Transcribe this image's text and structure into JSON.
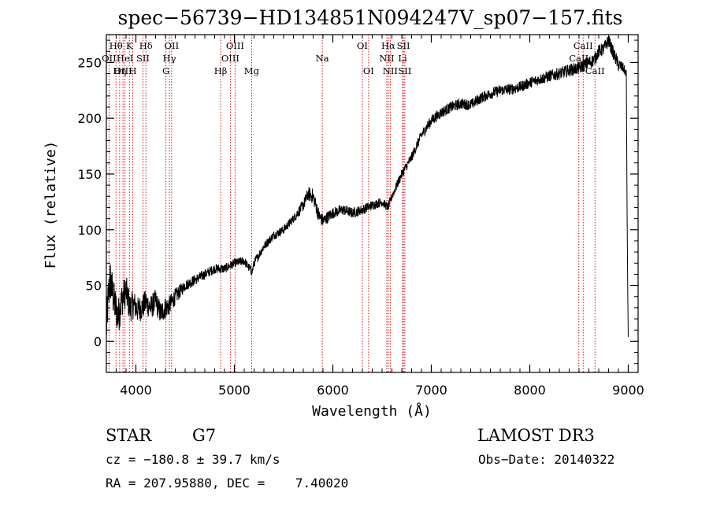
{
  "chart_data": {
    "type": "line",
    "title": "spec−56739−HD134851N094247V_sp07−157.fits",
    "xlabel": "Wavelength (Å)",
    "ylabel": "Flux (relative)",
    "xlim": [
      3700,
      9100
    ],
    "ylim": [
      -28,
      275
    ],
    "x_ticks": [
      4000,
      5000,
      6000,
      7000,
      8000,
      9000
    ],
    "y_ticks": [
      0,
      50,
      100,
      150,
      200,
      250
    ],
    "series": [
      {
        "name": "spectrum",
        "anchors": [
          [
            3700,
            10
          ],
          [
            3720,
            40
          ],
          [
            3740,
            55
          ],
          [
            3780,
            35
          ],
          [
            3820,
            22
          ],
          [
            3860,
            38
          ],
          [
            3900,
            45
          ],
          [
            3940,
            30
          ],
          [
            3980,
            33
          ],
          [
            4020,
            28
          ],
          [
            4060,
            30
          ],
          [
            4100,
            35
          ],
          [
            4150,
            30
          ],
          [
            4200,
            36
          ],
          [
            4250,
            25
          ],
          [
            4300,
            30
          ],
          [
            4340,
            32
          ],
          [
            4400,
            40
          ],
          [
            4500,
            50
          ],
          [
            4600,
            55
          ],
          [
            4700,
            60
          ],
          [
            4800,
            65
          ],
          [
            4900,
            65
          ],
          [
            5000,
            70
          ],
          [
            5100,
            72
          ],
          [
            5180,
            62
          ],
          [
            5200,
            70
          ],
          [
            5300,
            85
          ],
          [
            5400,
            95
          ],
          [
            5500,
            100
          ],
          [
            5600,
            110
          ],
          [
            5700,
            122
          ],
          [
            5750,
            132
          ],
          [
            5800,
            130
          ],
          [
            5860,
            112
          ],
          [
            5900,
            108
          ],
          [
            6000,
            115
          ],
          [
            6100,
            118
          ],
          [
            6200,
            115
          ],
          [
            6300,
            118
          ],
          [
            6400,
            122
          ],
          [
            6500,
            125
          ],
          [
            6560,
            120
          ],
          [
            6600,
            130
          ],
          [
            6700,
            150
          ],
          [
            6800,
            165
          ],
          [
            6900,
            185
          ],
          [
            7000,
            198
          ],
          [
            7100,
            205
          ],
          [
            7200,
            210
          ],
          [
            7300,
            213
          ],
          [
            7400,
            212
          ],
          [
            7500,
            218
          ],
          [
            7600,
            222
          ],
          [
            7700,
            225
          ],
          [
            7800,
            226
          ],
          [
            7900,
            228
          ],
          [
            8000,
            232
          ],
          [
            8100,
            235
          ],
          [
            8200,
            238
          ],
          [
            8300,
            240
          ],
          [
            8400,
            243
          ],
          [
            8500,
            245
          ],
          [
            8600,
            250
          ],
          [
            8650,
            252
          ],
          [
            8700,
            260
          ],
          [
            8750,
            262
          ],
          [
            8800,
            270
          ],
          [
            8820,
            265
          ],
          [
            8850,
            258
          ],
          [
            8900,
            248
          ],
          [
            8950,
            245
          ],
          [
            8980,
            240
          ],
          [
            8990,
            90
          ],
          [
            9000,
            0
          ]
        ],
        "noise": [
          [
            3700,
            20
          ],
          [
            4000,
            12
          ],
          [
            4300,
            10
          ],
          [
            4500,
            5
          ],
          [
            5000,
            4
          ],
          [
            5600,
            4
          ],
          [
            5800,
            7
          ],
          [
            6000,
            5
          ],
          [
            6600,
            4
          ],
          [
            7000,
            5
          ],
          [
            8000,
            5
          ],
          [
            8600,
            6
          ],
          [
            8900,
            6
          ],
          [
            9000,
            3
          ]
        ]
      }
    ],
    "spectral_lines": [
      {
        "label": "Hθ",
        "wave": 3798,
        "row": 0
      },
      {
        "label": "K",
        "wave": 3934,
        "row": 0
      },
      {
        "label": "Hδ",
        "wave": 4102,
        "row": 0
      },
      {
        "label": "OII",
        "wave": 4363,
        "row": 0
      },
      {
        "label": "OIII",
        "wave": 5007,
        "row": 0
      },
      {
        "label": "OI",
        "wave": 6300,
        "row": 0
      },
      {
        "label": "Hα",
        "wave": 6563,
        "row": 0
      },
      {
        "label": "SII",
        "wave": 6717,
        "row": 0
      },
      {
        "label": "CaII",
        "wave": 8542,
        "row": 0
      },
      {
        "label": "OII",
        "wave": 3727,
        "row": 1
      },
      {
        "label": "HeI",
        "wave": 3889,
        "row": 1
      },
      {
        "label": "SII",
        "wave": 4072,
        "row": 1
      },
      {
        "label": "Hγ",
        "wave": 4340,
        "row": 1
      },
      {
        "label": "OIII",
        "wave": 4959,
        "row": 1
      },
      {
        "label": "Na",
        "wave": 5893,
        "row": 1
      },
      {
        "label": "NII",
        "wave": 6548,
        "row": 1
      },
      {
        "label": "Li",
        "wave": 6708,
        "row": 1
      },
      {
        "label": "CaII",
        "wave": 8498,
        "row": 1
      },
      {
        "label": "OIII",
        "wave": 3869,
        "row": 2
      },
      {
        "label": "Hη",
        "wave": 3835,
        "row": 2
      },
      {
        "label": "H",
        "wave": 3968,
        "row": 2
      },
      {
        "label": "G",
        "wave": 4305,
        "row": 2
      },
      {
        "label": "Hβ",
        "wave": 4861,
        "row": 2
      },
      {
        "label": "Mg",
        "wave": 5175,
        "row": 2
      },
      {
        "label": "OI",
        "wave": 6363,
        "row": 2
      },
      {
        "label": "NII",
        "wave": 6583,
        "row": 2
      },
      {
        "label": "SII",
        "wave": 6731,
        "row": 2
      },
      {
        "label": "CaII",
        "wave": 8662,
        "row": 2
      }
    ],
    "line_color": "#000000",
    "marker_color": "#cc0000"
  },
  "info": {
    "object_class": "STAR",
    "subclass": "G7",
    "survey": "LAMOST DR3",
    "cz": "cz = −180.8 ± 39.7 km/s",
    "obs_date": "Obs−Date: 20140322",
    "radec": "RA = 207.95880, DEC =    7.40020"
  }
}
